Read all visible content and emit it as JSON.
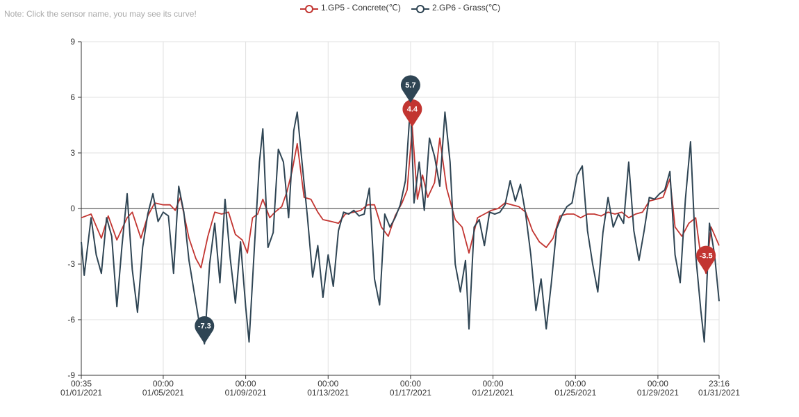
{
  "note": "Note: Click the sensor name, you may see its curve!",
  "legend": [
    {
      "label": "1.GP5 - Concrete(℃)",
      "color": "#c23531"
    },
    {
      "label": "2.GP6 - Grass(℃)",
      "color": "#2f4554"
    }
  ],
  "chart_data": {
    "type": "line",
    "ylim": [
      -9,
      9
    ],
    "y_ticks": [
      -9,
      -6,
      -3,
      0,
      3,
      6,
      9
    ],
    "x_range": [
      "2021-01-01 00:35",
      "2021-01-31 23:16"
    ],
    "x_ticks": [
      {
        "t": "2021-01-01 00:35",
        "line1": "00:35",
        "line2": "01/01/2021"
      },
      {
        "t": "2021-01-05 00:00",
        "line1": "00:00",
        "line2": "01/05/2021"
      },
      {
        "t": "2021-01-09 00:00",
        "line1": "00:00",
        "line2": "01/09/2021"
      },
      {
        "t": "2021-01-13 00:00",
        "line1": "00:00",
        "line2": "01/13/2021"
      },
      {
        "t": "2021-01-17 00:00",
        "line1": "00:00",
        "line2": "01/17/2021"
      },
      {
        "t": "2021-01-21 00:00",
        "line1": "00:00",
        "line2": "01/21/2021"
      },
      {
        "t": "2021-01-25 00:00",
        "line1": "00:00",
        "line2": "01/25/2021"
      },
      {
        "t": "2021-01-29 00:00",
        "line1": "00:00",
        "line2": "01/29/2021"
      },
      {
        "t": "2021-01-31 23:16",
        "line1": "23:16",
        "line2": "01/31/2021"
      }
    ],
    "grid": true,
    "legend_position": "top-center",
    "series": [
      {
        "name": "1.GP5 - Concrete(℃)",
        "color": "#c23531",
        "points": [
          [
            "2021-01-01 00:35",
            -0.5
          ],
          [
            "2021-01-01 12:00",
            -0.3
          ],
          [
            "2021-01-02 00:00",
            -1.6
          ],
          [
            "2021-01-02 08:00",
            -0.4
          ],
          [
            "2021-01-02 18:00",
            -1.7
          ],
          [
            "2021-01-03 06:00",
            -0.5
          ],
          [
            "2021-01-03 12:00",
            -0.2
          ],
          [
            "2021-01-03 22:00",
            -1.6
          ],
          [
            "2021-01-04 06:00",
            -0.4
          ],
          [
            "2021-01-04 14:00",
            0.3
          ],
          [
            "2021-01-05 00:00",
            0.2
          ],
          [
            "2021-01-05 08:00",
            0.2
          ],
          [
            "2021-01-05 14:00",
            -0.1
          ],
          [
            "2021-01-05 20:00",
            0.6
          ],
          [
            "2021-01-06 06:00",
            -1.6
          ],
          [
            "2021-01-06 14:00",
            -2.7
          ],
          [
            "2021-01-06 20:00",
            -3.2
          ],
          [
            "2021-01-07 04:00",
            -1.5
          ],
          [
            "2021-01-07 12:00",
            -0.2
          ],
          [
            "2021-01-07 20:00",
            -0.3
          ],
          [
            "2021-01-08 04:00",
            -0.2
          ],
          [
            "2021-01-08 12:00",
            -1.4
          ],
          [
            "2021-01-08 20:00",
            -1.7
          ],
          [
            "2021-01-09 02:00",
            -2.4
          ],
          [
            "2021-01-09 08:00",
            -0.5
          ],
          [
            "2021-01-09 14:00",
            -0.3
          ],
          [
            "2021-01-09 20:00",
            0.5
          ],
          [
            "2021-01-10 04:00",
            -0.5
          ],
          [
            "2021-01-10 10:00",
            -0.2
          ],
          [
            "2021-01-10 18:00",
            0.1
          ],
          [
            "2021-01-11 00:00",
            0.9
          ],
          [
            "2021-01-11 06:00",
            2.0
          ],
          [
            "2021-01-11 12:00",
            3.5
          ],
          [
            "2021-01-11 20:00",
            0.6
          ],
          [
            "2021-01-12 04:00",
            0.5
          ],
          [
            "2021-01-12 12:00",
            -0.2
          ],
          [
            "2021-01-12 18:00",
            -0.6
          ],
          [
            "2021-01-13 04:00",
            -0.7
          ],
          [
            "2021-01-13 12:00",
            -0.8
          ],
          [
            "2021-01-13 20:00",
            -0.3
          ],
          [
            "2021-01-14 06:00",
            -0.2
          ],
          [
            "2021-01-14 14:00",
            -0.1
          ],
          [
            "2021-01-14 22:00",
            0.2
          ],
          [
            "2021-01-15 06:00",
            0.2
          ],
          [
            "2021-01-15 14:00",
            -1.0
          ],
          [
            "2021-01-15 22:00",
            -1.5
          ],
          [
            "2021-01-16 06:00",
            -0.4
          ],
          [
            "2021-01-16 14:00",
            0.3
          ],
          [
            "2021-01-16 20:00",
            1.0
          ],
          [
            "2021-01-17 02:00",
            4.4
          ],
          [
            "2021-01-17 08:00",
            0.5
          ],
          [
            "2021-01-17 14:00",
            1.8
          ],
          [
            "2021-01-17 20:00",
            0.6
          ],
          [
            "2021-01-18 04:00",
            1.4
          ],
          [
            "2021-01-18 10:00",
            3.8
          ],
          [
            "2021-01-18 18:00",
            1.1
          ],
          [
            "2021-01-19 04:00",
            -0.6
          ],
          [
            "2021-01-19 12:00",
            -1.0
          ],
          [
            "2021-01-19 20:00",
            -2.4
          ],
          [
            "2021-01-20 06:00",
            -0.5
          ],
          [
            "2021-01-20 14:00",
            -0.3
          ],
          [
            "2021-01-20 22:00",
            -0.1
          ],
          [
            "2021-01-21 06:00",
            0.0
          ],
          [
            "2021-01-21 14:00",
            0.3
          ],
          [
            "2021-01-21 22:00",
            0.2
          ],
          [
            "2021-01-22 06:00",
            0.1
          ],
          [
            "2021-01-22 14:00",
            -0.2
          ],
          [
            "2021-01-22 22:00",
            -1.2
          ],
          [
            "2021-01-23 06:00",
            -1.8
          ],
          [
            "2021-01-23 14:00",
            -2.1
          ],
          [
            "2021-01-23 22:00",
            -1.6
          ],
          [
            "2021-01-24 06:00",
            -0.4
          ],
          [
            "2021-01-24 14:00",
            -0.3
          ],
          [
            "2021-01-24 22:00",
            -0.3
          ],
          [
            "2021-01-25 06:00",
            -0.5
          ],
          [
            "2021-01-25 14:00",
            -0.3
          ],
          [
            "2021-01-25 22:00",
            -0.3
          ],
          [
            "2021-01-26 06:00",
            -0.4
          ],
          [
            "2021-01-26 14:00",
            -0.2
          ],
          [
            "2021-01-26 22:00",
            -0.3
          ],
          [
            "2021-01-27 06:00",
            -0.2
          ],
          [
            "2021-01-27 14:00",
            -0.5
          ],
          [
            "2021-01-27 22:00",
            -0.3
          ],
          [
            "2021-01-28 06:00",
            -0.2
          ],
          [
            "2021-01-28 14:00",
            0.4
          ],
          [
            "2021-01-28 22:00",
            0.5
          ],
          [
            "2021-01-29 06:00",
            0.6
          ],
          [
            "2021-01-29 14:00",
            1.6
          ],
          [
            "2021-01-29 20:00",
            -1.0
          ],
          [
            "2021-01-30 04:00",
            -1.5
          ],
          [
            "2021-01-30 12:00",
            -0.8
          ],
          [
            "2021-01-30 20:00",
            -0.5
          ],
          [
            "2021-01-31 02:00",
            -2.6
          ],
          [
            "2021-01-31 08:00",
            -3.5
          ],
          [
            "2021-01-31 14:00",
            -1.0
          ],
          [
            "2021-01-31 23:16",
            -2.0
          ]
        ],
        "markers": [
          {
            "label": "4.4",
            "at": "2021-01-17 02:00",
            "value": 4.4
          },
          {
            "label": "-3.5",
            "at": "2021-01-31 08:00",
            "value": -3.5
          }
        ]
      },
      {
        "name": "2.GP6 - Grass(℃)",
        "color": "#2f4554",
        "points": [
          [
            "2021-01-01 00:35",
            -1.8
          ],
          [
            "2021-01-01 04:00",
            -3.6
          ],
          [
            "2021-01-01 12:00",
            -0.5
          ],
          [
            "2021-01-01 18:00",
            -2.5
          ],
          [
            "2021-01-02 00:00",
            -3.5
          ],
          [
            "2021-01-02 06:00",
            -0.5
          ],
          [
            "2021-01-02 12:00",
            -1.5
          ],
          [
            "2021-01-02 18:00",
            -5.3
          ],
          [
            "2021-01-03 00:00",
            -2.0
          ],
          [
            "2021-01-03 06:00",
            0.8
          ],
          [
            "2021-01-03 12:00",
            -3.3
          ],
          [
            "2021-01-03 18:00",
            -5.6
          ],
          [
            "2021-01-04 00:00",
            -2.1
          ],
          [
            "2021-01-04 06:00",
            -0.3
          ],
          [
            "2021-01-04 12:00",
            0.8
          ],
          [
            "2021-01-04 18:00",
            -0.7
          ],
          [
            "2021-01-05 00:00",
            -0.2
          ],
          [
            "2021-01-05 06:00",
            -0.4
          ],
          [
            "2021-01-05 12:00",
            -3.5
          ],
          [
            "2021-01-05 18:00",
            1.2
          ],
          [
            "2021-01-06 00:00",
            -0.2
          ],
          [
            "2021-01-06 06:00",
            -2.8
          ],
          [
            "2021-01-06 12:00",
            -4.5
          ],
          [
            "2021-01-06 18:00",
            -6.2
          ],
          [
            "2021-01-07 00:00",
            -7.3
          ],
          [
            "2021-01-07 06:00",
            -3.0
          ],
          [
            "2021-01-07 12:00",
            -0.8
          ],
          [
            "2021-01-07 18:00",
            -4.0
          ],
          [
            "2021-01-08 00:00",
            0.5
          ],
          [
            "2021-01-08 06:00",
            -2.7
          ],
          [
            "2021-01-08 12:00",
            -5.1
          ],
          [
            "2021-01-08 18:00",
            -1.8
          ],
          [
            "2021-01-09 00:00",
            -5.3
          ],
          [
            "2021-01-09 04:00",
            -7.2
          ],
          [
            "2021-01-09 10:00",
            -2.2
          ],
          [
            "2021-01-09 16:00",
            2.5
          ],
          [
            "2021-01-09 20:00",
            4.3
          ],
          [
            "2021-01-10 02:00",
            -2.1
          ],
          [
            "2021-01-10 08:00",
            -1.3
          ],
          [
            "2021-01-10 14:00",
            3.2
          ],
          [
            "2021-01-10 20:00",
            2.5
          ],
          [
            "2021-01-11 02:00",
            -0.5
          ],
          [
            "2021-01-11 08:00",
            4.2
          ],
          [
            "2021-01-11 12:00",
            5.2
          ],
          [
            "2021-01-11 18:00",
            2.3
          ],
          [
            "2021-01-12 00:00",
            -0.5
          ],
          [
            "2021-01-12 06:00",
            -3.7
          ],
          [
            "2021-01-12 12:00",
            -2.0
          ],
          [
            "2021-01-12 18:00",
            -4.8
          ],
          [
            "2021-01-13 00:00",
            -2.5
          ],
          [
            "2021-01-13 06:00",
            -4.2
          ],
          [
            "2021-01-13 12:00",
            -1.2
          ],
          [
            "2021-01-13 18:00",
            -0.2
          ],
          [
            "2021-01-14 00:00",
            -0.3
          ],
          [
            "2021-01-14 06:00",
            -0.1
          ],
          [
            "2021-01-14 12:00",
            -0.4
          ],
          [
            "2021-01-14 18:00",
            -0.3
          ],
          [
            "2021-01-15 00:00",
            1.1
          ],
          [
            "2021-01-15 06:00",
            -3.8
          ],
          [
            "2021-01-15 12:00",
            -5.2
          ],
          [
            "2021-01-15 18:00",
            -0.3
          ],
          [
            "2021-01-16 00:00",
            -1.0
          ],
          [
            "2021-01-16 06:00",
            -0.5
          ],
          [
            "2021-01-16 12:00",
            0.2
          ],
          [
            "2021-01-16 18:00",
            1.5
          ],
          [
            "2021-01-17 00:00",
            5.7
          ],
          [
            "2021-01-17 04:00",
            0.3
          ],
          [
            "2021-01-17 10:00",
            2.5
          ],
          [
            "2021-01-17 16:00",
            -0.1
          ],
          [
            "2021-01-17 22:00",
            3.8
          ],
          [
            "2021-01-18 04:00",
            2.8
          ],
          [
            "2021-01-18 10:00",
            1.2
          ],
          [
            "2021-01-18 16:00",
            5.2
          ],
          [
            "2021-01-18 22:00",
            2.5
          ],
          [
            "2021-01-19 04:00",
            -3.0
          ],
          [
            "2021-01-19 10:00",
            -4.5
          ],
          [
            "2021-01-19 16:00",
            -2.8
          ],
          [
            "2021-01-19 20:00",
            -6.5
          ],
          [
            "2021-01-20 02:00",
            -1.0
          ],
          [
            "2021-01-20 08:00",
            -0.6
          ],
          [
            "2021-01-20 14:00",
            -2.0
          ],
          [
            "2021-01-20 20:00",
            -0.2
          ],
          [
            "2021-01-21 02:00",
            -0.3
          ],
          [
            "2021-01-21 08:00",
            -0.2
          ],
          [
            "2021-01-21 14:00",
            0.2
          ],
          [
            "2021-01-21 20:00",
            1.5
          ],
          [
            "2021-01-22 02:00",
            0.4
          ],
          [
            "2021-01-22 08:00",
            1.3
          ],
          [
            "2021-01-22 14:00",
            -0.3
          ],
          [
            "2021-01-22 20:00",
            -2.5
          ],
          [
            "2021-01-23 02:00",
            -5.5
          ],
          [
            "2021-01-23 08:00",
            -3.8
          ],
          [
            "2021-01-23 14:00",
            -6.5
          ],
          [
            "2021-01-23 20:00",
            -4.0
          ],
          [
            "2021-01-24 02:00",
            -1.1
          ],
          [
            "2021-01-24 08:00",
            -0.4
          ],
          [
            "2021-01-24 14:00",
            0.1
          ],
          [
            "2021-01-24 20:00",
            0.3
          ],
          [
            "2021-01-25 02:00",
            1.8
          ],
          [
            "2021-01-25 08:00",
            2.3
          ],
          [
            "2021-01-25 14:00",
            -1.2
          ],
          [
            "2021-01-25 20:00",
            -3.0
          ],
          [
            "2021-01-26 02:00",
            -4.5
          ],
          [
            "2021-01-26 08:00",
            -1.3
          ],
          [
            "2021-01-26 14:00",
            0.6
          ],
          [
            "2021-01-26 20:00",
            -1.0
          ],
          [
            "2021-01-27 02:00",
            -0.3
          ],
          [
            "2021-01-27 08:00",
            -0.8
          ],
          [
            "2021-01-27 14:00",
            2.5
          ],
          [
            "2021-01-27 20:00",
            -1.2
          ],
          [
            "2021-01-28 02:00",
            -2.8
          ],
          [
            "2021-01-28 08:00",
            -1.2
          ],
          [
            "2021-01-28 14:00",
            0.6
          ],
          [
            "2021-01-28 20:00",
            0.5
          ],
          [
            "2021-01-29 02:00",
            0.8
          ],
          [
            "2021-01-29 08:00",
            1.0
          ],
          [
            "2021-01-29 14:00",
            2.0
          ],
          [
            "2021-01-29 20:00",
            -2.5
          ],
          [
            "2021-01-30 02:00",
            -4.0
          ],
          [
            "2021-01-30 08:00",
            0.5
          ],
          [
            "2021-01-30 14:00",
            3.6
          ],
          [
            "2021-01-30 20:00",
            -2.5
          ],
          [
            "2021-01-31 02:00",
            -5.5
          ],
          [
            "2021-01-31 06:00",
            -7.2
          ],
          [
            "2021-01-31 12:00",
            -0.8
          ],
          [
            "2021-01-31 18:00",
            -2.5
          ],
          [
            "2021-01-31 23:16",
            -5.0
          ]
        ],
        "markers": [
          {
            "label": "5.7",
            "at": "2021-01-17 00:00",
            "value": 5.7
          },
          {
            "label": "-7.3",
            "at": "2021-01-07 00:00",
            "value": -7.3
          }
        ]
      }
    ]
  }
}
